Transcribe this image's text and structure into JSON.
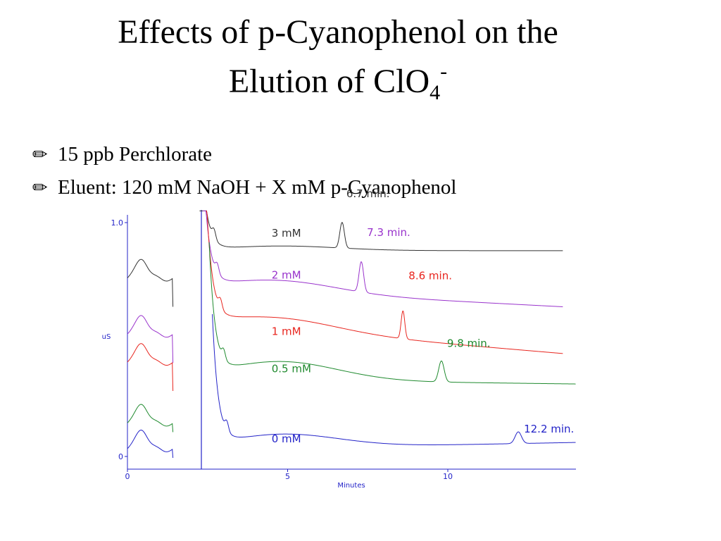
{
  "slide": {
    "title_line1": "Effects of p-Cyanophenol on the",
    "title_line2": "Elution of ClO",
    "title_sub": "4",
    "title_sup": "-",
    "bullets": [
      {
        "icon": "pencil-icon",
        "text": "15 ppb Perchlorate"
      },
      {
        "icon": "pencil-icon",
        "text": "Eluent:  120 mM NaOH + X mM p-Cyanophenol"
      }
    ]
  },
  "chart_data": {
    "type": "line",
    "xlabel": "Minutes",
    "ylabel": "uS",
    "xlim": [
      0,
      14
    ],
    "ylim": [
      0,
      1.0
    ],
    "xticks": [
      "0",
      "5",
      "10"
    ],
    "yticks": [
      "0",
      "1.0"
    ],
    "grid": false,
    "series": [
      {
        "name": "3 mM",
        "peak_label": "6.7 min.",
        "peak_time": 6.7,
        "color": "#333333"
      },
      {
        "name": "2 mM",
        "peak_label": "7.3 min.",
        "peak_time": 7.3,
        "color": "#9933cc"
      },
      {
        "name": "1 mM",
        "peak_label": "8.6 min.",
        "peak_time": 8.6,
        "color": "#e8261f"
      },
      {
        "name": "0.5 mM",
        "peak_label": "9.8 min.",
        "peak_time": 9.8,
        "color": "#1f8a2e"
      },
      {
        "name": "0 mM",
        "peak_label": "12.2 min.",
        "peak_time": 12.2,
        "color": "#2323c8"
      }
    ]
  }
}
